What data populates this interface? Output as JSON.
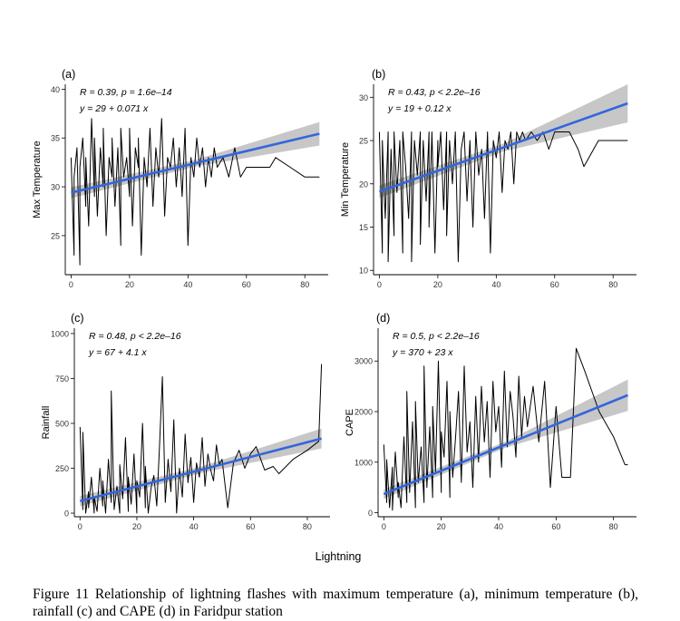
{
  "xlabel_common": "Lightning",
  "caption": "Figure 11 Relationship of lightning flashes with maximum temperature (a), minimum temperature (b), rainfall (c) and CAPE (d) in Faridpur station",
  "colors": {
    "series": "#000000",
    "fit": "#3366dd",
    "ci": "#bdbdbd"
  },
  "chart_data": [
    {
      "type": "line",
      "panel_label": "(a)",
      "ylabel": "Max Temperature",
      "xlabel": "",
      "xlim": [
        -2,
        88
      ],
      "ylim": [
        21,
        40.5
      ],
      "xticks": [
        "0",
        "20",
        "40",
        "60",
        "80"
      ],
      "yticks": [
        "25",
        "30",
        "35",
        "40"
      ],
      "stat_text": "R = 0.39, p = 1.6e–14",
      "eq_text": "y = 29 + 0.071 x",
      "fit": {
        "intercept": 29.4,
        "slope": 0.071,
        "x_range": [
          0,
          85
        ]
      },
      "ci_halfwidth": [
        0.35,
        1.2
      ],
      "x": [
        0,
        1,
        1,
        2,
        3,
        3,
        4,
        5,
        5,
        6,
        7,
        8,
        8,
        9,
        10,
        11,
        11,
        12,
        13,
        14,
        14,
        15,
        16,
        17,
        17,
        18,
        19,
        20,
        20,
        21,
        22,
        23,
        23,
        24,
        25,
        26,
        27,
        28,
        29,
        30,
        31,
        32,
        33,
        34,
        35,
        36,
        37,
        38,
        39,
        40,
        41,
        42,
        43,
        44,
        45,
        46,
        47,
        48,
        49,
        50,
        52,
        54,
        56,
        58,
        60,
        62,
        65,
        68,
        70,
        75,
        80,
        85
      ],
      "y": [
        33,
        23,
        31,
        34,
        22,
        32,
        35,
        28,
        33,
        26,
        37,
        29,
        35,
        27,
        34,
        30,
        36,
        25,
        33,
        31,
        35,
        28,
        34,
        24,
        36,
        31,
        33,
        29,
        36,
        26,
        34,
        32,
        35,
        23,
        33,
        30,
        36,
        28,
        34,
        31,
        37,
        27,
        33,
        32,
        35,
        30,
        34,
        29,
        36,
        24,
        33,
        31,
        35,
        32,
        34,
        30,
        33,
        31,
        34,
        32,
        33,
        31,
        34,
        31,
        32,
        32,
        32,
        32,
        33,
        32,
        31,
        31
      ]
    },
    {
      "type": "line",
      "panel_label": "(b)",
      "ylabel": "Min Temperature",
      "xlabel": "",
      "xlim": [
        -2,
        88
      ],
      "ylim": [
        9.5,
        31.5
      ],
      "xticks": [
        "0",
        "20",
        "40",
        "60",
        "80"
      ],
      "yticks": [
        "10",
        "15",
        "20",
        "25",
        "30"
      ],
      "stat_text": "R = 0.43, p < 2.2e–16",
      "eq_text": "y = 19 + 0.12 x",
      "fit": {
        "intercept": 19.1,
        "slope": 0.12,
        "x_range": [
          0,
          85
        ]
      },
      "ci_halfwidth": [
        0.45,
        2.2
      ],
      "x": [
        0,
        1,
        1,
        2,
        3,
        3,
        4,
        5,
        5,
        6,
        7,
        8,
        8,
        9,
        10,
        11,
        11,
        12,
        13,
        14,
        14,
        15,
        16,
        17,
        17,
        18,
        19,
        20,
        20,
        21,
        22,
        23,
        23,
        24,
        25,
        26,
        27,
        28,
        29,
        30,
        31,
        32,
        33,
        34,
        35,
        36,
        37,
        38,
        39,
        40,
        41,
        42,
        43,
        44,
        45,
        46,
        47,
        48,
        49,
        50,
        52,
        54,
        56,
        58,
        60,
        62,
        65,
        68,
        70,
        75,
        80,
        85
      ],
      "y": [
        26,
        12,
        25,
        16,
        26,
        11,
        24,
        14,
        26,
        19,
        25,
        12,
        26,
        22,
        16,
        26,
        11,
        25,
        21,
        26,
        13,
        25,
        18,
        26,
        15,
        26,
        12,
        25,
        22,
        26,
        17,
        26,
        14,
        25,
        20,
        26,
        11,
        24,
        26,
        18,
        25,
        15,
        26,
        21,
        24,
        16,
        26,
        12,
        25,
        23,
        26,
        19,
        25,
        24,
        26,
        20,
        26,
        25,
        26,
        25,
        26,
        25,
        26,
        24,
        26,
        26,
        26,
        24,
        22,
        25,
        25,
        25
      ]
    },
    {
      "type": "line",
      "panel_label": "(c)",
      "ylabel": "Rainfall",
      "xlabel": "",
      "xlim": [
        -2,
        88
      ],
      "ylim": [
        -20,
        1030
      ],
      "xticks": [
        "0",
        "20",
        "40",
        "60",
        "80"
      ],
      "yticks": [
        "0",
        "250",
        "500",
        "750",
        "1000"
      ],
      "stat_text": "R = 0.48, p < 2.2e–16",
      "eq_text": "y = 67 + 4.1 x",
      "fit": {
        "intercept": 67,
        "slope": 4.1,
        "x_range": [
          0,
          85
        ]
      },
      "ci_halfwidth": [
        18,
        55
      ],
      "x": [
        0,
        1,
        1,
        2,
        3,
        3,
        4,
        5,
        5,
        6,
        7,
        8,
        8,
        9,
        10,
        11,
        11,
        12,
        13,
        14,
        14,
        15,
        16,
        17,
        17,
        18,
        19,
        20,
        20,
        21,
        22,
        23,
        23,
        24,
        25,
        26,
        27,
        28,
        29,
        30,
        31,
        32,
        33,
        34,
        35,
        36,
        37,
        38,
        39,
        40,
        41,
        42,
        43,
        44,
        45,
        46,
        47,
        48,
        49,
        50,
        52,
        54,
        56,
        58,
        60,
        62,
        65,
        68,
        70,
        75,
        80,
        84,
        85
      ],
      "y": [
        480,
        20,
        450,
        0,
        120,
        30,
        200,
        0,
        90,
        10,
        250,
        40,
        180,
        0,
        300,
        60,
        680,
        20,
        150,
        0,
        270,
        80,
        420,
        10,
        200,
        50,
        330,
        0,
        180,
        90,
        500,
        30,
        260,
        0,
        140,
        210,
        40,
        380,
        760,
        60,
        300,
        120,
        520,
        0,
        250,
        90,
        440,
        170,
        310,
        60,
        280,
        200,
        420,
        150,
        330,
        240,
        180,
        380,
        270,
        300,
        30,
        280,
        350,
        250,
        330,
        370,
        240,
        260,
        220,
        300,
        350,
        400,
        830
      ]
    },
    {
      "type": "line",
      "panel_label": "(d)",
      "ylabel": "CAPE",
      "xlabel": "",
      "xlim": [
        -2,
        88
      ],
      "ylim": [
        -80,
        3650
      ],
      "xticks": [
        "0",
        "20",
        "40",
        "60",
        "80"
      ],
      "yticks": [
        "0",
        "1000",
        "2000",
        "3000"
      ],
      "stat_text": "R = 0.5, p < 2.2e–16",
      "eq_text": "y = 370 + 23 x",
      "fit": {
        "intercept": 370,
        "slope": 23,
        "x_range": [
          0,
          85
        ]
      },
      "ci_halfwidth": [
        60,
        310
      ],
      "x": [
        0,
        1,
        1,
        2,
        3,
        3,
        4,
        5,
        5,
        6,
        7,
        8,
        8,
        9,
        10,
        11,
        11,
        12,
        13,
        14,
        14,
        15,
        16,
        17,
        17,
        18,
        19,
        20,
        20,
        21,
        22,
        23,
        23,
        24,
        25,
        26,
        27,
        28,
        29,
        30,
        31,
        32,
        33,
        34,
        35,
        36,
        37,
        38,
        39,
        40,
        41,
        42,
        43,
        44,
        45,
        46,
        47,
        48,
        49,
        50,
        52,
        54,
        56,
        58,
        60,
        62,
        65,
        67,
        70,
        75,
        80,
        84,
        85
      ],
      "y": [
        1350,
        200,
        1050,
        100,
        900,
        50,
        1200,
        300,
        600,
        100,
        1500,
        200,
        2400,
        400,
        1800,
        100,
        2200,
        600,
        1300,
        200,
        2900,
        500,
        1700,
        300,
        2100,
        800,
        3000,
        400,
        1600,
        1100,
        2600,
        300,
        2000,
        700,
        1500,
        2400,
        600,
        2900,
        1200,
        1800,
        500,
        2300,
        1000,
        2500,
        1400,
        2200,
        700,
        2600,
        1600,
        2100,
        900,
        2800,
        1300,
        2400,
        1900,
        1100,
        2700,
        1500,
        2300,
        1700,
        2500,
        1400,
        2600,
        500,
        2100,
        700,
        700,
        3250,
        2800,
        2000,
        1500,
        950,
        950
      ]
    }
  ]
}
